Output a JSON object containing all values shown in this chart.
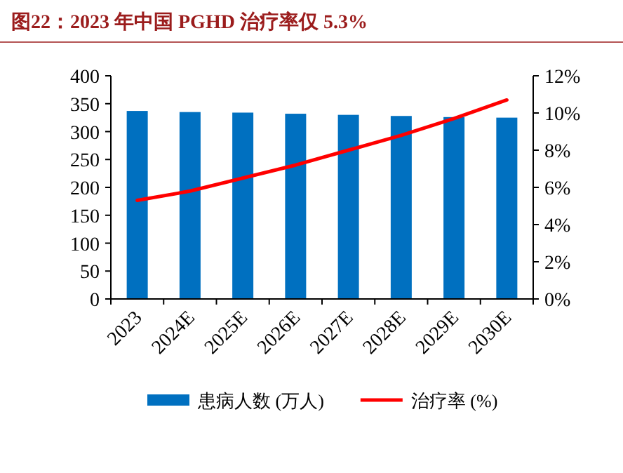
{
  "chart_data": {
    "type": "bar",
    "title": "图22：2023 年中国 PGHD 治疗率仅 5.3%",
    "categories": [
      "2023",
      "2024E",
      "2025E",
      "2026E",
      "2027E",
      "2028E",
      "2029E",
      "2030E"
    ],
    "series": [
      {
        "name": "患病人数 (万人)",
        "color": "#0070c0",
        "values": [
          337,
          335,
          334,
          332,
          330,
          328,
          326,
          325
        ]
      },
      {
        "name": "治疗率 (%)",
        "type": "line",
        "axis": "y2",
        "color": "#ff0000",
        "values": [
          5.3,
          5.8,
          6.5,
          7.2,
          8.0,
          8.8,
          9.7,
          10.7
        ]
      }
    ],
    "ylim": [
      0,
      400
    ],
    "yticks": [
      0,
      50,
      100,
      150,
      200,
      250,
      300,
      350,
      400
    ],
    "y2lim": [
      0,
      12
    ],
    "y2ticks": [
      {
        "value": 0,
        "label": "0%"
      },
      {
        "value": 2,
        "label": "2%"
      },
      {
        "value": 4,
        "label": "4%"
      },
      {
        "value": 6,
        "label": "6%"
      },
      {
        "value": 8,
        "label": "8%"
      },
      {
        "value": 10,
        "label": "10%"
      },
      {
        "value": 12,
        "label": "12%"
      }
    ],
    "legend": "bottom",
    "marker": "none",
    "line_style": "solid",
    "grid": false
  }
}
